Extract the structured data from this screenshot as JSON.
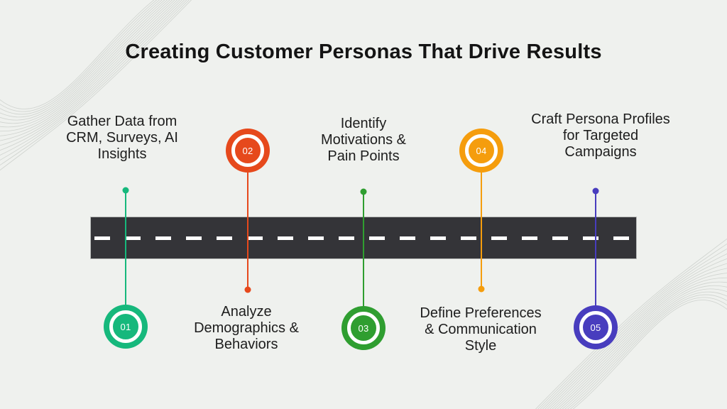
{
  "title": "Creating Customer Personas That Drive Results",
  "road": {
    "color": "#343438",
    "dash_color": "#ffffff"
  },
  "milestones": [
    {
      "number": "01",
      "label": "Gather Data from\nCRM, Surveys, AI\nInsights",
      "color": "#16b87c",
      "circle_side": "below-road",
      "label_side": "above-road"
    },
    {
      "number": "02",
      "label": "Analyze\nDemographics &\nBehaviors",
      "color": "#e6491c",
      "circle_side": "above-road",
      "label_side": "below-road"
    },
    {
      "number": "03",
      "label": "Identify\nMotivations &\nPain Points",
      "color": "#2f9e30",
      "circle_side": "below-road",
      "label_side": "above-road"
    },
    {
      "number": "04",
      "label": "Define Preferences\n& Communication\nStyle",
      "color": "#f59d0d",
      "circle_side": "above-road",
      "label_side": "below-road"
    },
    {
      "number": "05",
      "label": "Craft Persona Profiles\nfor Targeted\nCampaigns",
      "color": "#483dbe",
      "circle_side": "below-road",
      "label_side": "above-road"
    }
  ]
}
